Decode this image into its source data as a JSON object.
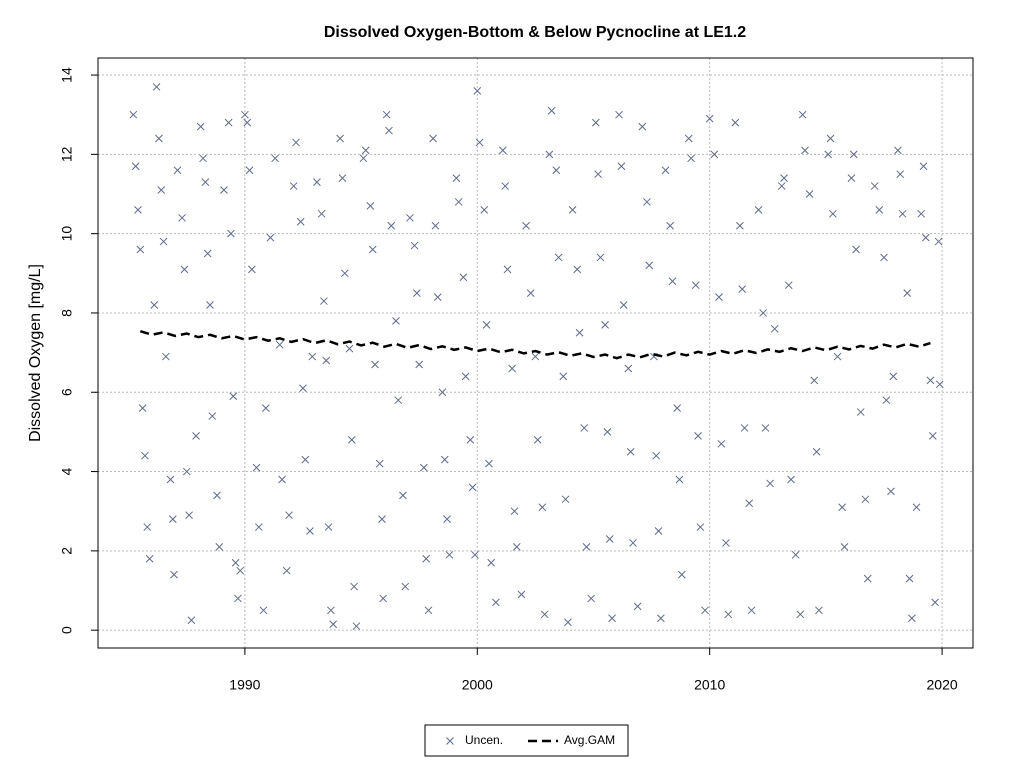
{
  "chart_data": {
    "type": "scatter",
    "title": "Dissolved Oxygen-Bottom & Below Pycnocline at LE1.2",
    "y_label": "Dissolved Oxygen [mg/L]",
    "xlim": [
      1983.68,
      2021.33
    ],
    "ylim": [
      -0.45,
      14.43
    ],
    "xticks": [
      1990,
      2000,
      2010,
      2020
    ],
    "yticks": [
      0,
      2,
      4,
      6,
      8,
      10,
      12,
      14
    ],
    "grid": true,
    "legend": "bottom",
    "series": [
      {
        "name": "Uncen.",
        "type": "scatter",
        "color": "#5d6b8a",
        "x": [
          1985.2,
          1985.3,
          1985.4,
          1985.5,
          1985.6,
          1985.7,
          1985.8,
          1985.9,
          1986.1,
          1986.2,
          1986.3,
          1986.4,
          1986.5,
          1986.6,
          1986.8,
          1986.9,
          1986.95,
          1987.1,
          1987.3,
          1987.4,
          1987.5,
          1987.6,
          1987.7,
          1987.9,
          1988.1,
          1988.2,
          1988.3,
          1988.4,
          1988.5,
          1988.6,
          1988.8,
          1988.9,
          1989.1,
          1989.3,
          1989.4,
          1989.5,
          1989.6,
          1989.7,
          1989.8,
          1990.0,
          1990.1,
          1990.2,
          1990.3,
          1990.5,
          1990.6,
          1990.8,
          1990.9,
          1991.1,
          1991.3,
          1991.5,
          1991.6,
          1991.8,
          1991.9,
          1992.1,
          1992.2,
          1992.4,
          1992.5,
          1992.6,
          1992.8,
          1992.9,
          1993.1,
          1993.3,
          1993.4,
          1993.5,
          1993.6,
          1993.7,
          1993.8,
          1994.1,
          1994.2,
          1994.3,
          1994.5,
          1994.6,
          1994.7,
          1994.8,
          1995.1,
          1995.2,
          1995.4,
          1995.5,
          1995.6,
          1995.8,
          1995.9,
          1995.95,
          1996.1,
          1996.2,
          1996.3,
          1996.5,
          1996.6,
          1996.8,
          1996.9,
          1997.1,
          1997.3,
          1997.4,
          1997.5,
          1997.7,
          1997.8,
          1997.9,
          1998.1,
          1998.2,
          1998.3,
          1998.5,
          1998.6,
          1998.7,
          1998.8,
          1999.1,
          1999.2,
          1999.4,
          1999.5,
          1999.7,
          1999.8,
          1999.9,
          2000.0,
          2000.1,
          2000.3,
          2000.4,
          2000.5,
          2000.6,
          2000.8,
          2001.1,
          2001.2,
          2001.3,
          2001.5,
          2001.6,
          2001.7,
          2001.9,
          2002.1,
          2002.3,
          2002.5,
          2002.6,
          2002.8,
          2002.9,
          2003.1,
          2003.2,
          2003.4,
          2003.5,
          2003.7,
          2003.8,
          2003.9,
          2004.1,
          2004.3,
          2004.4,
          2004.6,
          2004.7,
          2004.9,
          2005.1,
          2005.2,
          2005.3,
          2005.5,
          2005.6,
          2005.7,
          2005.8,
          2006.1,
          2006.2,
          2006.3,
          2006.5,
          2006.6,
          2006.7,
          2006.9,
          2007.1,
          2007.3,
          2007.4,
          2007.6,
          2007.7,
          2007.8,
          2007.9,
          2008.1,
          2008.3,
          2008.4,
          2008.6,
          2008.7,
          2008.8,
          2009.1,
          2009.2,
          2009.4,
          2009.5,
          2009.6,
          2009.8,
          2010.0,
          2010.2,
          2010.4,
          2010.5,
          2010.7,
          2010.8,
          2011.1,
          2011.3,
          2011.4,
          2011.5,
          2011.7,
          2011.8,
          2012.1,
          2012.3,
          2012.4,
          2012.6,
          2012.8,
          2013.1,
          2013.2,
          2013.4,
          2013.5,
          2013.7,
          2013.9,
          2014.0,
          2014.1,
          2014.3,
          2014.5,
          2014.6,
          2014.7,
          2015.1,
          2015.2,
          2015.3,
          2015.5,
          2015.7,
          2015.8,
          2016.1,
          2016.2,
          2016.3,
          2016.5,
          2016.7,
          2016.8,
          2017.1,
          2017.3,
          2017.5,
          2017.6,
          2017.8,
          2017.9,
          2018.1,
          2018.2,
          2018.3,
          2018.5,
          2018.6,
          2018.7,
          2018.9,
          2019.1,
          2019.2,
          2019.3,
          2019.5,
          2019.6,
          2019.7,
          2019.85,
          2019.9
        ],
        "values": [
          13.0,
          11.7,
          10.6,
          9.6,
          5.6,
          4.4,
          2.6,
          1.8,
          8.2,
          13.7,
          12.4,
          11.1,
          9.8,
          6.9,
          3.8,
          2.8,
          1.4,
          11.6,
          10.4,
          9.1,
          4.0,
          2.9,
          0.25,
          4.9,
          12.7,
          11.9,
          11.3,
          9.5,
          8.2,
          5.4,
          3.4,
          2.1,
          11.1,
          12.8,
          10.0,
          5.9,
          1.7,
          0.8,
          1.5,
          13.0,
          12.8,
          11.6,
          9.1,
          4.1,
          2.6,
          0.5,
          5.6,
          9.9,
          11.9,
          7.2,
          3.8,
          1.5,
          2.9,
          11.2,
          12.3,
          10.3,
          6.1,
          4.3,
          2.5,
          6.9,
          11.3,
          10.5,
          8.3,
          6.8,
          2.6,
          0.5,
          0.15,
          12.4,
          11.4,
          9.0,
          7.1,
          4.8,
          1.1,
          0.1,
          11.9,
          12.1,
          10.7,
          9.6,
          6.7,
          4.2,
          2.8,
          0.8,
          13.0,
          12.6,
          10.2,
          7.8,
          5.8,
          3.4,
          1.1,
          10.4,
          9.7,
          8.5,
          6.7,
          4.1,
          1.8,
          0.5,
          12.4,
          10.2,
          8.4,
          6.0,
          4.3,
          2.8,
          1.9,
          11.4,
          10.8,
          8.9,
          6.4,
          4.8,
          3.6,
          1.9,
          13.6,
          12.3,
          10.6,
          7.7,
          4.2,
          1.7,
          0.7,
          12.1,
          11.2,
          9.1,
          6.6,
          3.0,
          2.1,
          0.9,
          10.2,
          8.5,
          6.9,
          4.8,
          3.1,
          0.4,
          12.0,
          13.1,
          11.6,
          9.4,
          6.4,
          3.3,
          0.2,
          10.6,
          9.1,
          7.5,
          5.1,
          2.1,
          0.8,
          12.8,
          11.5,
          9.4,
          7.7,
          5.0,
          2.3,
          0.3,
          13.0,
          11.7,
          8.2,
          6.6,
          4.5,
          2.2,
          0.6,
          12.7,
          10.8,
          9.2,
          6.9,
          4.4,
          2.5,
          0.3,
          11.6,
          10.2,
          8.8,
          5.6,
          3.8,
          1.4,
          12.4,
          11.9,
          8.7,
          4.9,
          2.6,
          0.5,
          12.9,
          12.0,
          8.4,
          4.7,
          2.2,
          0.4,
          12.8,
          10.2,
          8.6,
          5.1,
          3.2,
          0.5,
          10.6,
          8.0,
          5.1,
          3.7,
          7.6,
          11.2,
          11.4,
          8.7,
          3.8,
          1.9,
          0.4,
          13.0,
          12.1,
          11.0,
          6.3,
          4.5,
          0.5,
          12.0,
          12.4,
          10.5,
          6.9,
          3.1,
          2.1,
          11.4,
          12.0,
          9.6,
          5.5,
          3.3,
          1.3,
          11.2,
          10.6,
          9.4,
          5.8,
          3.5,
          6.4,
          12.1,
          11.5,
          10.5,
          8.5,
          1.3,
          0.3,
          3.1,
          10.5,
          11.7,
          9.9,
          6.3,
          4.9,
          0.7,
          9.8,
          6.2
        ]
      },
      {
        "name": "Avg.GAM",
        "type": "line",
        "color": "#000000",
        "dashed": true,
        "x": [
          1985.5,
          1986,
          1986.5,
          1987,
          1987.5,
          1988,
          1988.5,
          1989,
          1989.5,
          1990,
          1990.5,
          1991,
          1991.5,
          1992,
          1992.5,
          1993,
          1993.5,
          1994,
          1994.5,
          1995,
          1995.5,
          1996,
          1996.5,
          1997,
          1997.5,
          1998,
          1998.5,
          1999,
          1999.5,
          2000,
          2000.5,
          2001,
          2001.5,
          2002,
          2002.5,
          2003,
          2003.5,
          2004,
          2004.5,
          2005,
          2005.5,
          2006,
          2006.5,
          2007,
          2007.5,
          2008,
          2008.5,
          2009,
          2009.5,
          2010,
          2010.5,
          2011,
          2011.5,
          2012,
          2012.5,
          2013,
          2013.5,
          2014,
          2014.5,
          2015,
          2015.5,
          2016,
          2016.5,
          2017,
          2017.5,
          2018,
          2018.5,
          2019,
          2019.5
        ],
        "values": [
          7.54,
          7.45,
          7.51,
          7.42,
          7.48,
          7.39,
          7.45,
          7.36,
          7.42,
          7.33,
          7.39,
          7.3,
          7.36,
          7.27,
          7.34,
          7.24,
          7.31,
          7.21,
          7.28,
          7.18,
          7.25,
          7.15,
          7.22,
          7.12,
          7.19,
          7.09,
          7.16,
          7.07,
          7.13,
          7.04,
          7.1,
          7.01,
          7.07,
          6.98,
          7.04,
          6.95,
          7.01,
          6.92,
          6.98,
          6.89,
          6.95,
          6.86,
          6.95,
          6.88,
          6.97,
          6.9,
          7.0,
          6.93,
          7.02,
          6.95,
          7.04,
          6.97,
          7.06,
          6.99,
          7.08,
          7.02,
          7.11,
          7.04,
          7.13,
          7.06,
          7.15,
          7.08,
          7.17,
          7.1,
          7.2,
          7.13,
          7.22,
          7.15,
          7.24
        ]
      }
    ]
  }
}
